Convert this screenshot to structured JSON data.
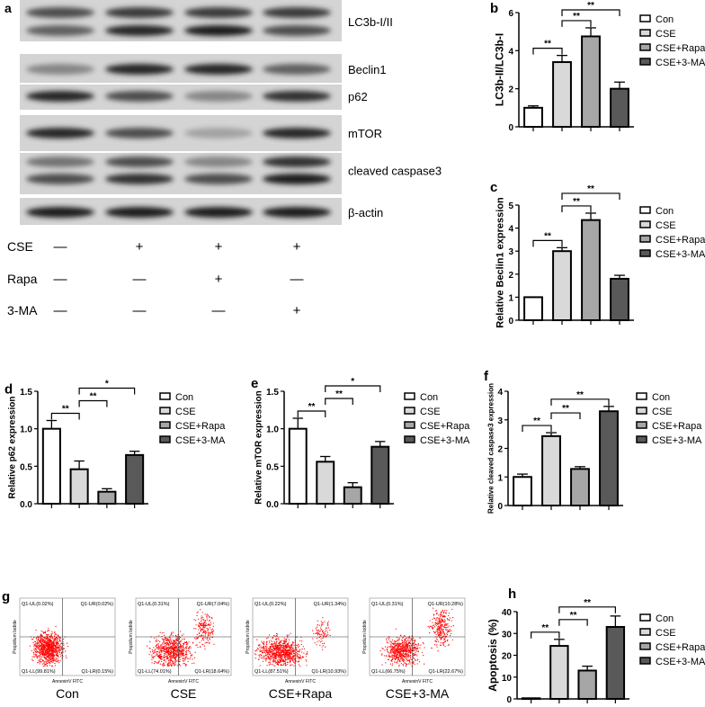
{
  "panel_a": {
    "letter": "a",
    "rows": [
      {
        "label": "LC3b-I/II",
        "bands": [
          [
            0.7,
            0.8,
            0.8,
            0.8
          ],
          [
            0.6,
            0.9,
            0.95,
            0.7
          ]
        ]
      },
      {
        "label": "Beclin1",
        "bands": [
          [
            0.4,
            0.9,
            0.9,
            0.6
          ]
        ]
      },
      {
        "label": "p62",
        "bands": [
          [
            0.9,
            0.7,
            0.4,
            0.85
          ]
        ]
      },
      {
        "label": "mTOR",
        "bands": [
          [
            0.9,
            0.7,
            0.25,
            0.9
          ]
        ]
      },
      {
        "label": "cleaved caspase3",
        "bands": [
          [
            0.5,
            0.7,
            0.4,
            0.85
          ],
          [
            0.7,
            0.85,
            0.7,
            0.95
          ]
        ]
      },
      {
        "label": "β-actin",
        "bands": [
          [
            0.95,
            0.95,
            0.95,
            0.95
          ]
        ]
      }
    ],
    "treatments": [
      {
        "label": "CSE",
        "signs": [
          "—",
          "+",
          "+",
          "+"
        ]
      },
      {
        "label": "Rapa",
        "signs": [
          "—",
          "—",
          "+",
          "—"
        ]
      },
      {
        "label": "3-MA",
        "signs": [
          "—",
          "—",
          "—",
          "+"
        ]
      }
    ]
  },
  "legend": [
    "Con",
    "CSE",
    "CSE+Rapa",
    "CSE+3-MA"
  ],
  "colors": [
    "#ffffff",
    "#d9d9d9",
    "#a6a6a6",
    "#595959"
  ],
  "chart_data": [
    {
      "id": "b",
      "type": "bar",
      "letter": "b",
      "ylabel": "LC3b-II/LC3b-I",
      "categories": [
        "Con",
        "CSE",
        "CSE+Rapa",
        "CSE+3-MA"
      ],
      "values": [
        1.0,
        3.4,
        4.75,
        2.0
      ],
      "errors": [
        0.1,
        0.35,
        0.45,
        0.35
      ],
      "ylim": [
        0,
        6
      ],
      "ticks": [
        "0",
        "2",
        "4",
        "6"
      ],
      "significance": [
        [
          0,
          1,
          "**"
        ],
        [
          1,
          2,
          "**"
        ],
        [
          1,
          3,
          "**"
        ]
      ],
      "legend": "right"
    },
    {
      "id": "c",
      "type": "bar",
      "letter": "c",
      "ylabel": "Relative Beclin1 expression",
      "categories": [
        "Con",
        "CSE",
        "CSE+Rapa",
        "CSE+3-MA"
      ],
      "values": [
        1.0,
        3.0,
        4.35,
        1.8
      ],
      "errors": [
        0,
        0.15,
        0.3,
        0.15
      ],
      "ylim": [
        0,
        5
      ],
      "ticks": [
        "0",
        "1",
        "2",
        "3",
        "4",
        "5"
      ],
      "significance": [
        [
          0,
          1,
          "**"
        ],
        [
          1,
          2,
          "**"
        ],
        [
          1,
          3,
          "**"
        ]
      ],
      "legend": "right"
    },
    {
      "id": "d",
      "type": "bar",
      "letter": "d",
      "ylabel": "Relative p62 expression",
      "categories": [
        "Con",
        "CSE",
        "CSE+Rapa",
        "CSE+3-MA"
      ],
      "values": [
        1.0,
        0.46,
        0.16,
        0.65
      ],
      "errors": [
        0.11,
        0.11,
        0.04,
        0.05
      ],
      "ylim": [
        0,
        1.5
      ],
      "ticks": [
        "0.0",
        "0.5",
        "1.0",
        "1.5"
      ],
      "significance": [
        [
          0,
          1,
          "**"
        ],
        [
          1,
          2,
          "**"
        ],
        [
          1,
          3,
          "*"
        ]
      ],
      "legend": "right"
    },
    {
      "id": "e",
      "type": "bar",
      "letter": "e",
      "ylabel": "Relative mTOR expression",
      "categories": [
        "Con",
        "CSE",
        "CSE+Rapa",
        "CSE+3-MA"
      ],
      "values": [
        1.0,
        0.56,
        0.22,
        0.76
      ],
      "errors": [
        0.14,
        0.07,
        0.06,
        0.07
      ],
      "ylim": [
        0,
        1.5
      ],
      "ticks": [
        "0.0",
        "0.5",
        "1.0",
        "1.5"
      ],
      "significance": [
        [
          0,
          1,
          "**"
        ],
        [
          1,
          2,
          "**"
        ],
        [
          1,
          3,
          "*"
        ]
      ],
      "legend": "right"
    },
    {
      "id": "f",
      "type": "bar",
      "letter": "f",
      "ylabel": "Relative cleaved caspase3 expression",
      "categories": [
        "Con",
        "CSE",
        "CSE+Rapa",
        "CSE+3-MA"
      ],
      "values": [
        1.0,
        2.43,
        1.28,
        3.3
      ],
      "errors": [
        0.1,
        0.12,
        0.08,
        0.17
      ],
      "ylim": [
        0,
        4
      ],
      "ticks": [
        "0",
        "1",
        "2",
        "3",
        "4"
      ],
      "significance": [
        [
          0,
          1,
          "**"
        ],
        [
          1,
          2,
          "**"
        ],
        [
          1,
          3,
          "**"
        ]
      ],
      "legend": "right"
    },
    {
      "id": "h",
      "type": "bar",
      "letter": "h",
      "ylabel": "Apoptosis (%)",
      "categories": [
        "Con",
        "CSE",
        "CSE+Rapa",
        "CSE+3-MA"
      ],
      "values": [
        0.3,
        24.3,
        13.0,
        33.0
      ],
      "errors": [
        0,
        3,
        2,
        5
      ],
      "ylim": [
        0,
        40
      ],
      "ticks": [
        "0",
        "10",
        "20",
        "30",
        "40"
      ],
      "significance": [
        [
          0,
          1,
          "**"
        ],
        [
          1,
          2,
          "**"
        ],
        [
          1,
          3,
          "**"
        ]
      ],
      "legend": "right"
    },
    {
      "id": "g",
      "type": "scatter",
      "letter": "g",
      "xlabel": "AnnexinV FITC",
      "ylabel": "Propidium Iodide",
      "point_color": "#ff0000",
      "plots": [
        {
          "title": "Con",
          "quadrants": {
            "UL": "Q1-UL(0.02%)",
            "UR": "Q1-UR(0.02%)",
            "LL": "Q1-LL(99.81%)",
            "LR": "Q1-LR(0.15%)"
          }
        },
        {
          "title": "CSE",
          "quadrants": {
            "UL": "Q1-UL(0.31%)",
            "UR": "Q1-UR(7.04%)",
            "LL": "Q1-LL(74.01%)",
            "LR": "Q1-LR(18.64%)"
          }
        },
        {
          "title": "CSE+Rapa",
          "quadrants": {
            "UL": "Q1-UL(0.22%)",
            "UR": "Q1-UR(1.34%)",
            "LL": "Q1-LL(87.51%)",
            "LR": "Q1-LR(10.93%)"
          }
        },
        {
          "title": "CSE+3-MA",
          "quadrants": {
            "UL": "Q1-UL(0.31%)",
            "UR": "Q1-UR(10.28%)",
            "LL": "Q1-LL(66.75%)",
            "LR": "Q1-LR(22.67%)"
          }
        }
      ]
    }
  ]
}
